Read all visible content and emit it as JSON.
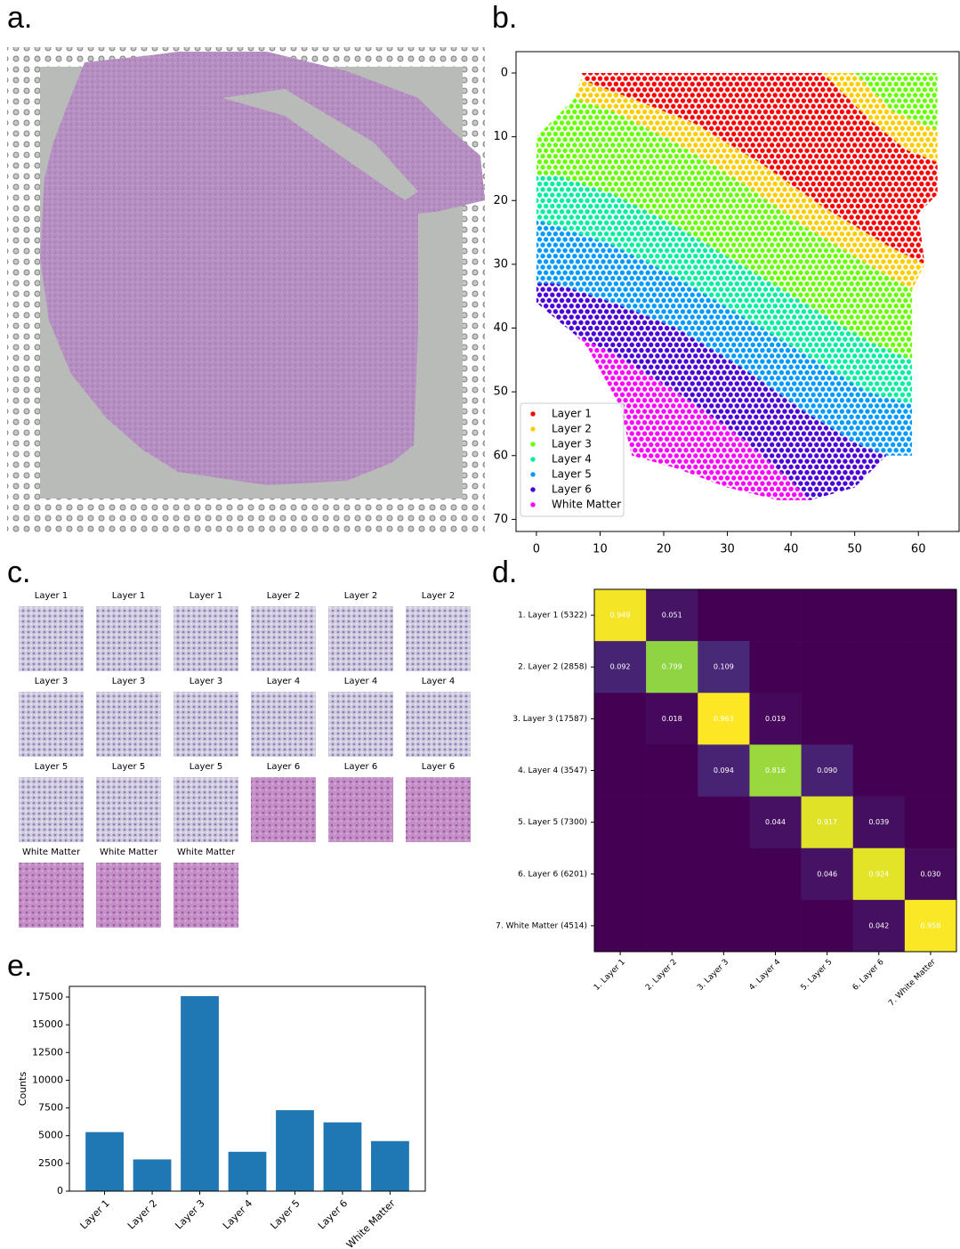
{
  "panels": {
    "a": "a.",
    "b": "b.",
    "c": "c.",
    "d": "d.",
    "e": "e."
  },
  "patches": [
    "Layer 1",
    "Layer 1",
    "Layer 1",
    "Layer 2",
    "Layer 2",
    "Layer 2",
    "Layer 3",
    "Layer 3",
    "Layer 3",
    "Layer 4",
    "Layer 4",
    "Layer 4",
    "Layer 5",
    "Layer 5",
    "Layer 5",
    "Layer 6",
    "Layer 6",
    "Layer 6",
    "White Matter",
    "White Matter",
    "White Matter"
  ],
  "chart_data": [
    {
      "type": "scatter",
      "xlim": [
        -3.2,
        66.4
      ],
      "ylim": [
        71.9,
        -3.35
      ],
      "xticks": [
        0,
        10,
        20,
        30,
        40,
        50,
        60
      ],
      "yticks": [
        0,
        10,
        20,
        30,
        40,
        50,
        60,
        70
      ],
      "legend": "lower left",
      "series": [
        {
          "name": "Layer 1",
          "color": "#ff0000",
          "x": [
            7,
            45,
            52,
            58,
            63,
            63,
            60,
            61,
            55,
            45,
            35,
            25,
            15,
            8
          ],
          "y": [
            0,
            0,
            7,
            12,
            14,
            19,
            22,
            30,
            27,
            21,
            14,
            8,
            4,
            2
          ]
        },
        {
          "name": "Layer 2",
          "color": "#ffcc00",
          "x": [
            7,
            15,
            25,
            35,
            45,
            55,
            61,
            59,
            52,
            42,
            32,
            22,
            12,
            6,
            null,
            45,
            50,
            56,
            63,
            63,
            58,
            52
          ],
          "y": [
            1,
            4,
            8,
            14,
            21,
            27,
            30,
            34,
            30,
            24,
            17,
            11,
            6,
            4,
            null,
            0,
            0,
            6,
            9,
            14,
            12,
            7
          ]
        },
        {
          "name": "Layer 3",
          "color": "#66ff00",
          "x": [
            0,
            3,
            6,
            12,
            22,
            32,
            42,
            52,
            59,
            59,
            52,
            42,
            32,
            22,
            12,
            3,
            0,
            null,
            50,
            63,
            63,
            56
          ],
          "y": [
            10,
            7,
            4,
            6,
            11,
            17,
            24,
            30,
            34,
            45,
            42,
            36,
            30,
            24,
            19,
            16,
            16,
            null,
            0,
            0,
            9,
            6
          ]
        },
        {
          "name": "Layer 4",
          "color": "#00eea0",
          "x": [
            0,
            3,
            12,
            22,
            32,
            42,
            52,
            59,
            59,
            52,
            42,
            32,
            22,
            12,
            3,
            0
          ],
          "y": [
            16,
            16,
            19,
            24,
            30,
            36,
            42,
            45,
            52,
            50,
            44,
            38,
            32,
            27,
            24,
            23
          ]
        },
        {
          "name": "Layer 5",
          "color": "#0099ff",
          "x": [
            0,
            3,
            12,
            22,
            32,
            42,
            52,
            59,
            59,
            55,
            50,
            42,
            32,
            22,
            12,
            3,
            0
          ],
          "y": [
            23,
            24,
            27,
            32,
            38,
            44,
            50,
            52,
            60,
            60,
            58,
            53,
            46,
            40,
            36,
            33,
            33
          ]
        },
        {
          "name": "Layer 6",
          "color": "#4a00d8",
          "x": [
            0,
            3,
            12,
            22,
            32,
            42,
            50,
            55,
            50,
            43,
            40,
            32,
            22,
            12,
            6,
            0
          ],
          "y": [
            33,
            33,
            36,
            40,
            46,
            53,
            58,
            60,
            65,
            67,
            64,
            57,
            50,
            44,
            41,
            36
          ]
        },
        {
          "name": "White Matter",
          "color": "#ff00ff",
          "x": [
            6,
            12,
            22,
            32,
            40,
            43,
            38,
            30,
            22,
            15,
            13,
            8
          ],
          "y": [
            41,
            44,
            50,
            57,
            64,
            67,
            67,
            65,
            62,
            60,
            52,
            43
          ]
        }
      ]
    },
    {
      "type": "heatmap",
      "colormap": "viridis",
      "row_labels": [
        "1. Layer 1 (5322)",
        "2. Layer 2 (2858)",
        "3. Layer 3 (17587)",
        "4. Layer 4 (3547)",
        "5. Layer 5 (7300)",
        "6. Layer 6 (6201)",
        "7. White Matter (4514)"
      ],
      "col_labels": [
        "1. Layer 1",
        "2. Layer 2",
        "3. Layer 3",
        "4. Layer 4",
        "5. Layer 5",
        "6. Layer 6",
        "7. White Matter"
      ],
      "values": [
        [
          0.949,
          0.051,
          0,
          0,
          0,
          0,
          0
        ],
        [
          0.092,
          0.799,
          0.109,
          0,
          0,
          0,
          0
        ],
        [
          0,
          0.018,
          0.963,
          0.019,
          0,
          0,
          0
        ],
        [
          0,
          0,
          0.094,
          0.816,
          0.09,
          0,
          0
        ],
        [
          0,
          0,
          0,
          0.044,
          0.917,
          0.039,
          0
        ],
        [
          0,
          0,
          0,
          0,
          0.046,
          0.924,
          0.03
        ],
        [
          0,
          0,
          0,
          0,
          0,
          0.042,
          0.958
        ]
      ],
      "value_labels": [
        [
          "0.949",
          "0.051",
          null,
          null,
          null,
          null,
          null
        ],
        [
          "0.092",
          "0.799",
          "0.109",
          null,
          null,
          null,
          null
        ],
        [
          null,
          "0.018",
          "0.963",
          "0.019",
          null,
          null,
          null
        ],
        [
          null,
          null,
          "0.094",
          "0.816",
          "0.090",
          null,
          null
        ],
        [
          null,
          null,
          null,
          "0.044",
          "0.917",
          "0.039",
          null
        ],
        [
          null,
          null,
          null,
          null,
          "0.046",
          "0.924",
          "0.030"
        ],
        [
          null,
          null,
          null,
          null,
          null,
          "0.042",
          "0.958"
        ]
      ]
    },
    {
      "type": "bar",
      "ylabel": "Counts",
      "color": "#1f77b4",
      "categories": [
        "Layer 1",
        "Layer 2",
        "Layer 3",
        "Layer 4",
        "Layer 5",
        "Layer 6",
        "White Matter"
      ],
      "values": [
        5322,
        2858,
        17587,
        3547,
        7300,
        6201,
        4514
      ],
      "ylim": [
        0,
        18464
      ],
      "yticks": [
        0,
        2500,
        5000,
        7500,
        10000,
        12500,
        15000,
        17500
      ]
    }
  ]
}
